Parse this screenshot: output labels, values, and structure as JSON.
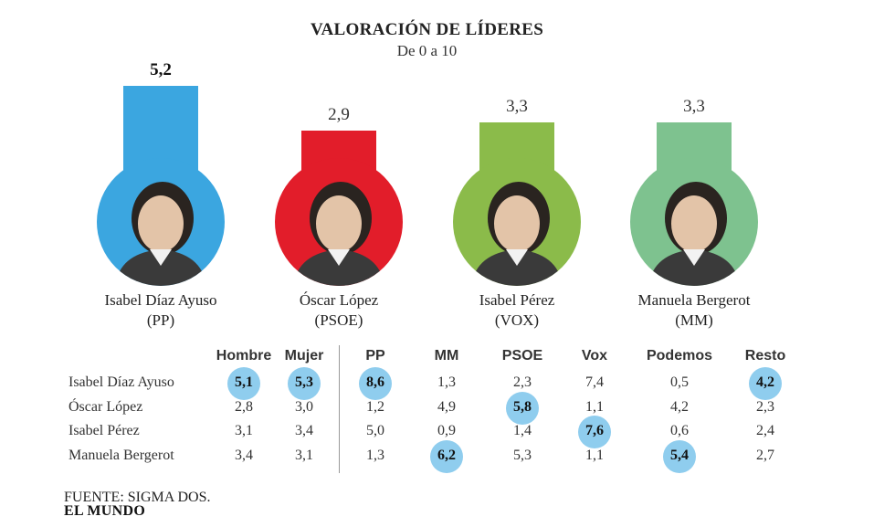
{
  "title": "VALORACIÓN DE LÍDERES",
  "subtitle": "De 0 a 10",
  "leaders": [
    {
      "name": "Isabel Díaz Ayuso",
      "party": "(PP)",
      "score_label": "5,2",
      "color": "#3ba6e0"
    },
    {
      "name": "Óscar López",
      "party": "(PSOE)",
      "score_label": "2,9",
      "color": "#e21d2a"
    },
    {
      "name": "Isabel Pérez",
      "party": "(VOX)",
      "score_label": "3,3",
      "color": "#8bbb4a"
    },
    {
      "name": "Manuela Bergerot",
      "party": "(MM)",
      "score_label": "3,3",
      "color": "#7ec28f"
    }
  ],
  "table": {
    "columns": [
      "Hombre",
      "Mujer",
      "PP",
      "MM",
      "PSOE",
      "Vox",
      "Podemos",
      "Resto"
    ],
    "rows": [
      {
        "label": "Isabel Díaz Ayuso",
        "cells": [
          "5,1",
          "5,3",
          "8,6",
          "1,3",
          "2,3",
          "7,4",
          "0,5",
          "4,2"
        ],
        "highlight": [
          0,
          1,
          2,
          7
        ]
      },
      {
        "label": "Óscar López",
        "cells": [
          "2,8",
          "3,0",
          "1,2",
          "4,9",
          "5,8",
          "1,1",
          "4,2",
          "2,3"
        ],
        "highlight": [
          4
        ]
      },
      {
        "label": "Isabel Pérez",
        "cells": [
          "3,1",
          "3,4",
          "5,0",
          "0,9",
          "1,4",
          "7,6",
          "0,6",
          "2,4"
        ],
        "highlight": [
          5
        ]
      },
      {
        "label": "Manuela Bergerot",
        "cells": [
          "3,4",
          "3,1",
          "1,3",
          "6,2",
          "5,3",
          "1,1",
          "5,4",
          "2,7"
        ],
        "highlight": [
          3,
          6
        ]
      }
    ],
    "highlight_color": "#8fcdee"
  },
  "source": "FUENTE: SIGMA DOS.",
  "brand": "EL MUNDO",
  "chart_data": {
    "type": "bar",
    "title": "VALORACIÓN DE LÍDERES",
    "subtitle": "De 0 a 10",
    "categories": [
      "Isabel Díaz Ayuso",
      "Óscar López",
      "Isabel Pérez",
      "Manuela Bergerot"
    ],
    "values": [
      5.2,
      2.9,
      3.3,
      3.3
    ],
    "ylim": [
      0,
      10
    ]
  }
}
